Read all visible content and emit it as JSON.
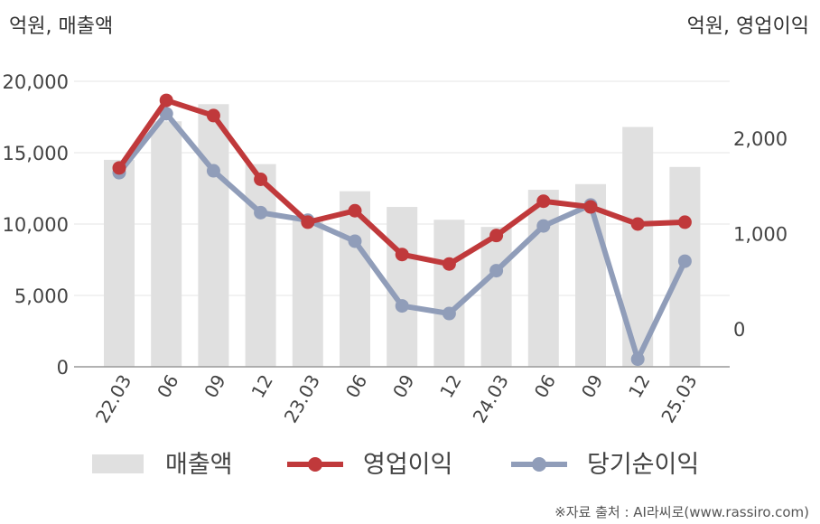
{
  "chart_data": {
    "type": "bar",
    "units": {
      "left": "억원, 매출액",
      "right": "억원, 영업이익"
    },
    "categories": [
      "22.03",
      "06",
      "09",
      "12",
      "23.03",
      "06",
      "09",
      "12",
      "24.03",
      "06",
      "09",
      "12",
      "25.03"
    ],
    "left_axis": {
      "ylim": [
        0,
        20000
      ],
      "ticks": [
        "0",
        "5,000",
        "10,000",
        "15,000",
        "20,000"
      ]
    },
    "right_axis": {
      "ylim": [
        -400,
        2600
      ],
      "ticks": [
        "0",
        "1,000",
        "2,000"
      ]
    },
    "series": [
      {
        "name": "매출액",
        "type": "bar",
        "axis": "left",
        "color": "#e0e0e0",
        "values": [
          14500,
          17200,
          18400,
          14200,
          10400,
          12300,
          11200,
          10300,
          9800,
          12400,
          12800,
          16800,
          14000
        ]
      },
      {
        "name": "영업이익",
        "type": "line",
        "axis": "right",
        "color": "#c0393b",
        "values": [
          1690,
          2400,
          2240,
          1570,
          1120,
          1240,
          780,
          680,
          980,
          1340,
          1280,
          1100,
          1120
        ]
      },
      {
        "name": "당기순이익",
        "type": "line",
        "axis": "right",
        "color": "#909db9",
        "values": [
          1640,
          2260,
          1660,
          1220,
          1140,
          920,
          240,
          160,
          610,
          1080,
          1300,
          -320,
          710
        ]
      }
    ],
    "grid": true,
    "legend_position": "bottom"
  },
  "source": "※자료 출처 : AI라씨로(www.rassiro.com)"
}
